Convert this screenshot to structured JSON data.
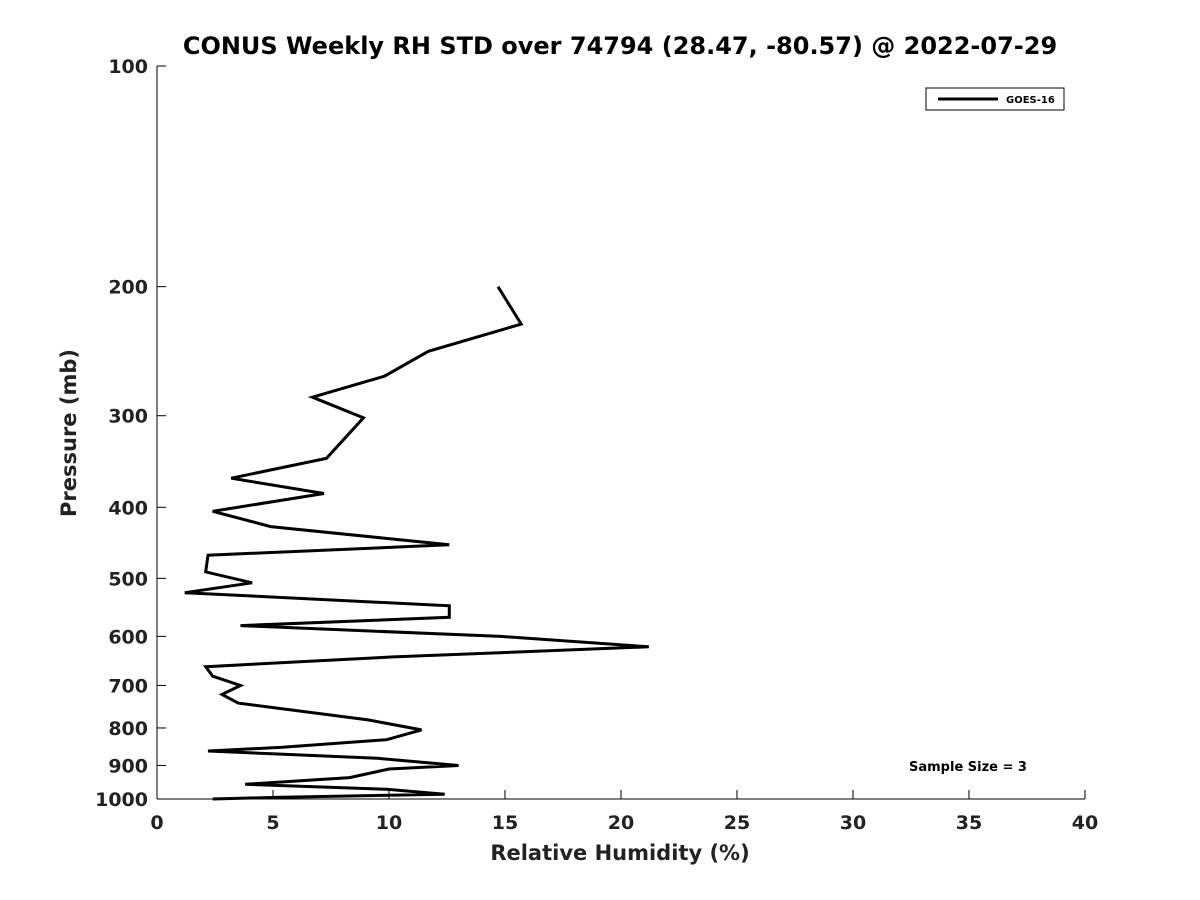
{
  "chart_data": {
    "type": "line",
    "title": "CONUS Weekly RH STD over 74794 (28.47, -80.57) @ 2022-07-29",
    "xlabel": "Relative Humidity (%)",
    "ylabel": "Pressure (mb)",
    "xlim": [
      0,
      40
    ],
    "ylim": [
      100,
      1000
    ],
    "y_scale": "log",
    "y_reversed": true,
    "x_ticks": [
      0,
      5,
      10,
      15,
      20,
      25,
      30,
      35,
      40
    ],
    "y_ticks": [
      100,
      200,
      300,
      400,
      500,
      600,
      700,
      800,
      900,
      1000
    ],
    "grid": false,
    "legend_position": "top-right",
    "series": [
      {
        "name": "GOES-16",
        "color": "#000000",
        "x": [
          14.7,
          15.7,
          11.7,
          9.8,
          6.7,
          8.9,
          7.3,
          3.2,
          7.2,
          2.4,
          4.9,
          12.6,
          2.2,
          2.1,
          4.1,
          1.2,
          12.6,
          12.6,
          3.6,
          14.8,
          21.2,
          10.2,
          2.1,
          2.4,
          3.6,
          2.8,
          3.5,
          9.1,
          11.4,
          9.9,
          5.4,
          2.2,
          9.5,
          13.0,
          10.0,
          8.3,
          3.8,
          9.9,
          12.4,
          5.1,
          2.4
        ],
        "y": [
          200,
          225,
          245,
          265,
          283,
          302,
          343,
          365,
          383,
          405,
          425,
          450,
          465,
          490,
          507,
          523,
          545,
          565,
          580,
          600,
          620,
          640,
          660,
          680,
          700,
          720,
          740,
          780,
          805,
          830,
          850,
          860,
          880,
          900,
          910,
          935,
          955,
          970,
          985,
          995,
          1000
        ]
      }
    ],
    "annotations": [
      "Sample Size = 3"
    ]
  }
}
